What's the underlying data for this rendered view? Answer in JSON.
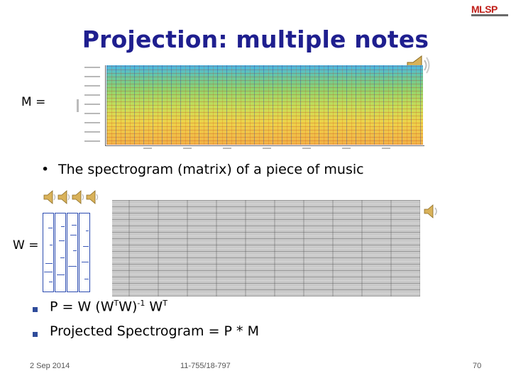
{
  "slide": {
    "title": "Projection: multiple notes",
    "logo": "MLSP",
    "m_label": "M =",
    "w_label": "W =",
    "bullet": "The spectrogram (matrix) of a piece of music",
    "bullet_marker": "•",
    "equations": {
      "p_lhs": "P = W (W",
      "sup_t": "T",
      "mid": "W)",
      "sup_neg1": "-1",
      "w": " W",
      "sup_t2": "T",
      "projected": "Projected Spectrogram = P * M"
    },
    "footer": {
      "date": "2 Sep 2014",
      "course": "11-755/18-797",
      "page": "70"
    },
    "icons": [
      "speaker-icon"
    ],
    "colors": {
      "title": "#1f1f8f",
      "logo": "#c0201a",
      "bullet_square": "#2f4c9a",
      "note_matrix": "#2b4bb0"
    }
  }
}
